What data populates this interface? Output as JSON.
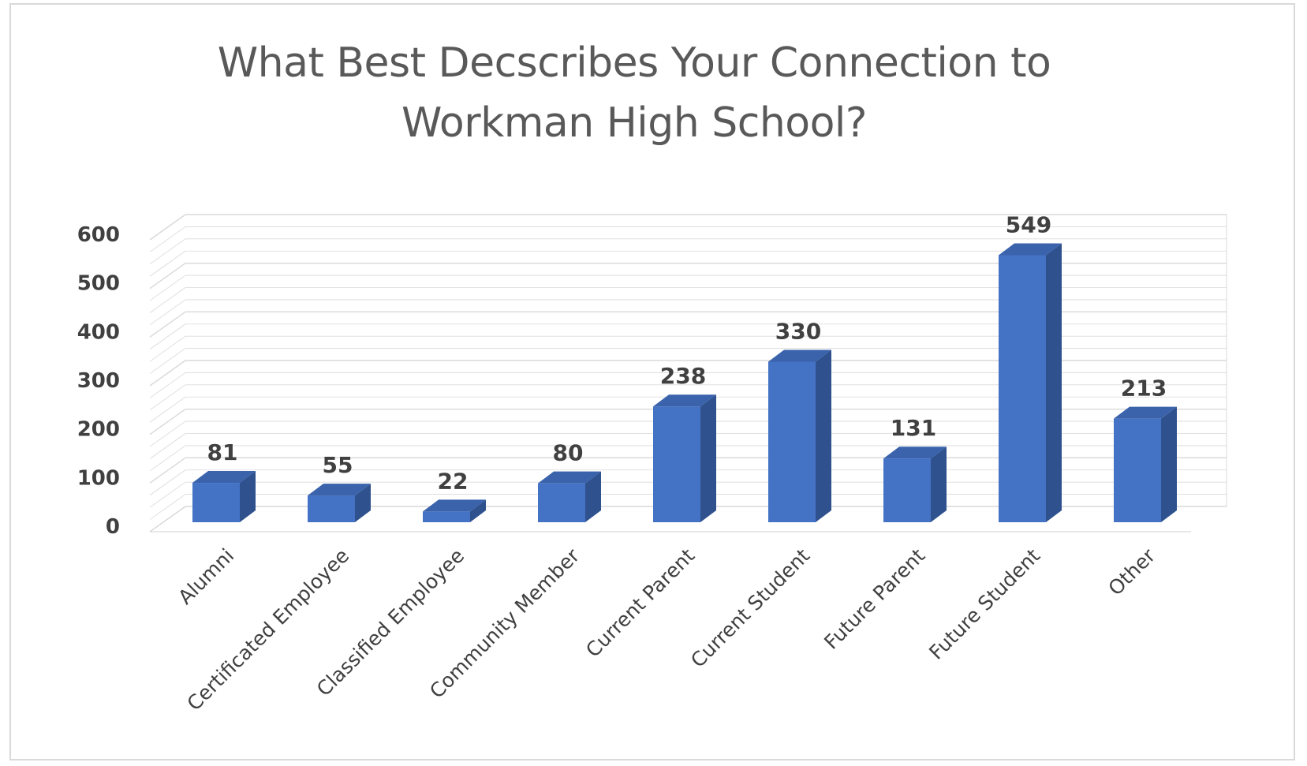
{
  "chart_data": {
    "type": "bar",
    "title": "What Best Decscribes Your Connection to Workman High School?",
    "title_lines": [
      "What Best Decscribes Your Connection to",
      "Workman High School?"
    ],
    "categories": [
      "Alumni",
      "Certificated Employee",
      "Classified Employee",
      "Community Member",
      "Current Parent",
      "Current Student",
      "Future  Parent",
      "Future Student",
      "Other"
    ],
    "values": [
      81,
      55,
      22,
      80,
      238,
      330,
      131,
      549,
      213
    ],
    "yticks": [
      "0",
      "100",
      "200",
      "300",
      "400",
      "500",
      "600"
    ],
    "ylim": [
      0,
      600
    ],
    "xlabel": "",
    "ylabel": "",
    "grid": true,
    "legend": "none",
    "style": "3d-column",
    "colors": {
      "bar_front": "#4472c4",
      "bar_side": "#2f528f",
      "bar_top": "#3a63ac",
      "grid": "#d9d9d9",
      "text": "#404040",
      "title": "#595959"
    }
  }
}
